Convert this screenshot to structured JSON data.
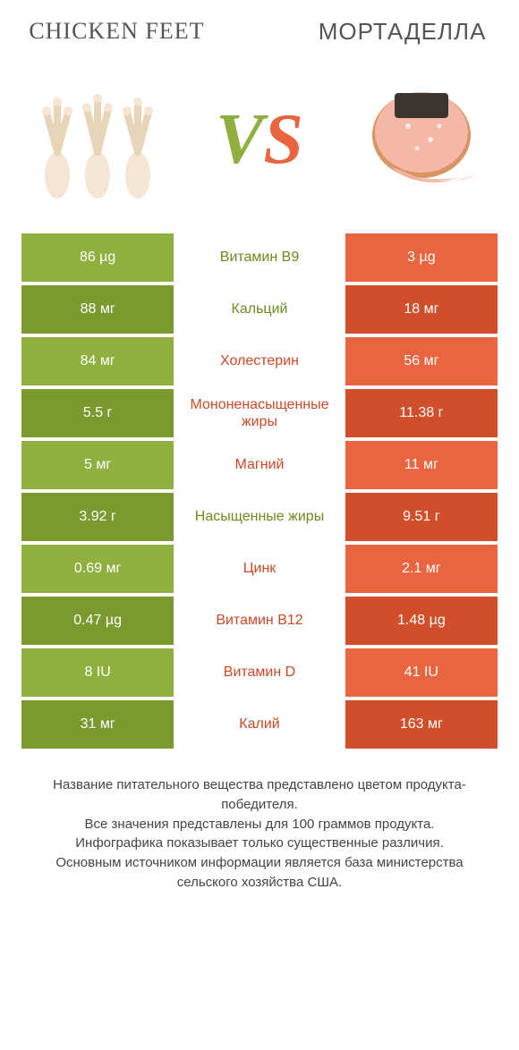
{
  "header": {
    "left_title": "CHICKEN FEET",
    "right_title": "МОРТАДЕЛЛА",
    "vs_v": "V",
    "vs_s": "S"
  },
  "colors": {
    "green": "#8fb03e",
    "green_dark": "#7a9a2f",
    "orange": "#e8653f",
    "orange_dark": "#d04f2a",
    "mid_green_text": "#6a8a1f",
    "mid_orange_text": "#c84a26",
    "chicken_skin": "#f5e6d3",
    "chicken_shadow": "#e8d4b8",
    "mortadella_pink": "#f5b8a8",
    "mortadella_dark": "#3a3530",
    "mortadella_rind": "#d89560"
  },
  "table": {
    "rows": [
      {
        "left": "86 µg",
        "mid": "Витамин B9",
        "right": "3 µg",
        "winner": "left"
      },
      {
        "left": "88 мг",
        "mid": "Кальций",
        "right": "18 мг",
        "winner": "left"
      },
      {
        "left": "84 мг",
        "mid": "Холестерин",
        "right": "56 мг",
        "winner": "right"
      },
      {
        "left": "5.5 г",
        "mid": "Мононенасыщенные жиры",
        "right": "11.38 г",
        "winner": "right"
      },
      {
        "left": "5 мг",
        "mid": "Магний",
        "right": "11 мг",
        "winner": "right"
      },
      {
        "left": "3.92 г",
        "mid": "Насыщенные жиры",
        "right": "9.51 г",
        "winner": "left"
      },
      {
        "left": "0.69 мг",
        "mid": "Цинк",
        "right": "2.1 мг",
        "winner": "right"
      },
      {
        "left": "0.47 µg",
        "mid": "Витамин B12",
        "right": "1.48 µg",
        "winner": "right"
      },
      {
        "left": "8 IU",
        "mid": "Витамин D",
        "right": "41 IU",
        "winner": "right"
      },
      {
        "left": "31 мг",
        "mid": "Калий",
        "right": "163 мг",
        "winner": "right"
      }
    ]
  },
  "footer": {
    "line1": "Название питательного вещества представлено цветом продукта-победителя.",
    "line2": "Все значения представлены для 100 граммов продукта.",
    "line3": "Инфографика показывает только существенные различия.",
    "line4": "Основным источником информации является база министерства сельского хозяйства США."
  }
}
